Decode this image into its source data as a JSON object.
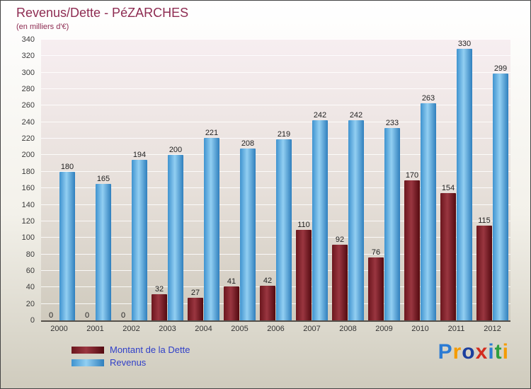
{
  "title": "Revenus/Dette - PéZARCHES",
  "subtitle": "(en milliers d'€)",
  "colors": {
    "title_text": "#8e2c52",
    "legend_text": "#2f3fc8",
    "axis_text": "#333333",
    "dette": "#7a1a22",
    "revenus": "#4aa0d8"
  },
  "chart_data": {
    "type": "bar",
    "title": "Revenus/Dette - PéZARCHES",
    "subtitle": "(en milliers d'€)",
    "categories": [
      "2000",
      "2001",
      "2002",
      "2003",
      "2004",
      "2005",
      "2006",
      "2007",
      "2008",
      "2009",
      "2010",
      "2011",
      "2012"
    ],
    "series": [
      {
        "name": "Montant de la Dette",
        "color": "#7a1a22",
        "gradient": [
          "#6b161d",
          "#9a3640",
          "#530a10"
        ],
        "values": [
          0,
          0,
          0,
          32,
          27,
          41,
          42,
          110,
          92,
          76,
          170,
          154,
          115
        ]
      },
      {
        "name": "Revenus",
        "color": "#4aa0d8",
        "gradient": [
          "#3f93cf",
          "#92cff2",
          "#2f7fbd"
        ],
        "values": [
          180,
          165,
          194,
          200,
          221,
          208,
          219,
          242,
          242,
          233,
          263,
          330,
          299
        ]
      }
    ],
    "ylim": [
      0,
      340
    ],
    "ytick_step": 20,
    "grid": true,
    "value_labels": true,
    "legend_position": "bottom-left",
    "xlabel": "",
    "ylabel": ""
  },
  "legend": {
    "items": [
      {
        "label": "Montant de la Dette",
        "color": "#7a1a22",
        "gradient": [
          "#6b161d",
          "#9a3640",
          "#530a10"
        ]
      },
      {
        "label": "Revenus",
        "color": "#4aa0d8",
        "gradient": [
          "#3f93cf",
          "#92cff2",
          "#2f7fbd"
        ]
      }
    ]
  },
  "logo": {
    "text": "Proxiti",
    "letters": [
      {
        "ch": "P",
        "color": "#2b7bd4"
      },
      {
        "ch": "r",
        "color": "#f59b00"
      },
      {
        "ch": "o",
        "color": "#1b3f9e"
      },
      {
        "ch": "x",
        "color": "#d32b1e"
      },
      {
        "ch": "i",
        "color": "#2b7bd4"
      },
      {
        "ch": "t",
        "color": "#2f9e3f"
      },
      {
        "ch": "i",
        "color": "#f59b00"
      }
    ]
  }
}
